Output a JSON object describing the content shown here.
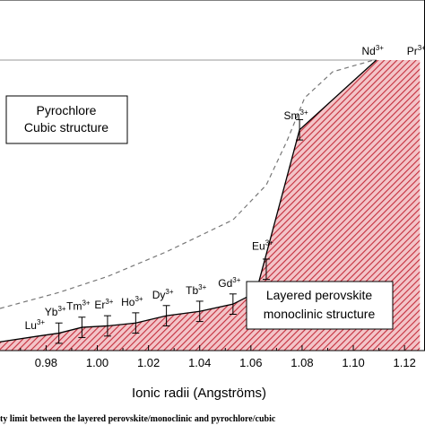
{
  "chart_data": {
    "type": "area",
    "xlabel": "Ionic radii (Angströms)",
    "x_ticks": [
      0.98,
      1.0,
      1.02,
      1.04,
      1.06,
      1.08,
      1.1,
      1.12
    ],
    "x_tick_labels": [
      "0.98",
      "1.00",
      "1.02",
      "1.04",
      "1.06",
      "1.08",
      "1.10",
      "1.12"
    ],
    "xlim": [
      0.962,
      1.128
    ],
    "ylim": [
      0.0,
      1.0
    ],
    "regions": [
      {
        "label_line1": "Pyrochlore",
        "label_line2": "Cubic structure"
      },
      {
        "label_line1": "Layered perovskite",
        "label_line2": "monoclinic structure"
      }
    ],
    "ions": [
      {
        "symbol": "Lu",
        "charge": "3+",
        "x": 0.977,
        "y": 0.05,
        "err": 0.0
      },
      {
        "symbol": "Yb",
        "charge": "3+",
        "x": 0.985,
        "y": 0.06,
        "err": 0.035
      },
      {
        "symbol": "Tm",
        "charge": "3+",
        "x": 0.994,
        "y": 0.08,
        "err": 0.035
      },
      {
        "symbol": "Er",
        "charge": "3+",
        "x": 1.004,
        "y": 0.085,
        "err": 0.035
      },
      {
        "symbol": "Ho",
        "charge": "3+",
        "x": 1.015,
        "y": 0.095,
        "err": 0.035
      },
      {
        "symbol": "Dy",
        "charge": "3+",
        "x": 1.027,
        "y": 0.12,
        "err": 0.035
      },
      {
        "symbol": "Tb",
        "charge": "3+",
        "x": 1.04,
        "y": 0.135,
        "err": 0.035
      },
      {
        "symbol": "Gd",
        "charge": "3+",
        "x": 1.053,
        "y": 0.16,
        "err": 0.035
      },
      {
        "symbol": "Eu",
        "charge": "3+",
        "x": 1.066,
        "y": 0.28,
        "err": 0.035
      },
      {
        "symbol": "Sm",
        "charge": "3+",
        "x": 1.079,
        "y": 0.76,
        "err": 0.035
      },
      {
        "symbol": "Nd",
        "charge": "3+",
        "x": 1.109,
        "y": 1.0,
        "err": 0.0
      },
      {
        "symbol": "Pr",
        "charge": "3+",
        "x": 1.126,
        "y": 1.0,
        "err": 0.0
      }
    ],
    "boundary_solid": [
      [
        0.962,
        0.03
      ],
      [
        0.977,
        0.05
      ],
      [
        0.985,
        0.06
      ],
      [
        0.994,
        0.08
      ],
      [
        1.004,
        0.085
      ],
      [
        1.015,
        0.095
      ],
      [
        1.027,
        0.12
      ],
      [
        1.04,
        0.135
      ],
      [
        1.053,
        0.16
      ],
      [
        1.062,
        0.2
      ],
      [
        1.079,
        0.76
      ],
      [
        1.109,
        1.0
      ],
      [
        1.126,
        1.0
      ]
    ],
    "boundary_dashed": [
      [
        0.962,
        0.145
      ],
      [
        0.985,
        0.2
      ],
      [
        1.004,
        0.255
      ],
      [
        1.027,
        0.34
      ],
      [
        1.053,
        0.45
      ],
      [
        1.066,
        0.57
      ],
      [
        1.074,
        0.72
      ],
      [
        1.081,
        0.87
      ],
      [
        1.092,
        0.96
      ],
      [
        1.108,
        1.0
      ]
    ],
    "reference_line_y": 1.0,
    "fill_color": "#c42e3c",
    "fill_bg": "#f3c4c8"
  },
  "caption": "ty limit between the layered perovskite/monoclinic and pyrochlore/cubic"
}
